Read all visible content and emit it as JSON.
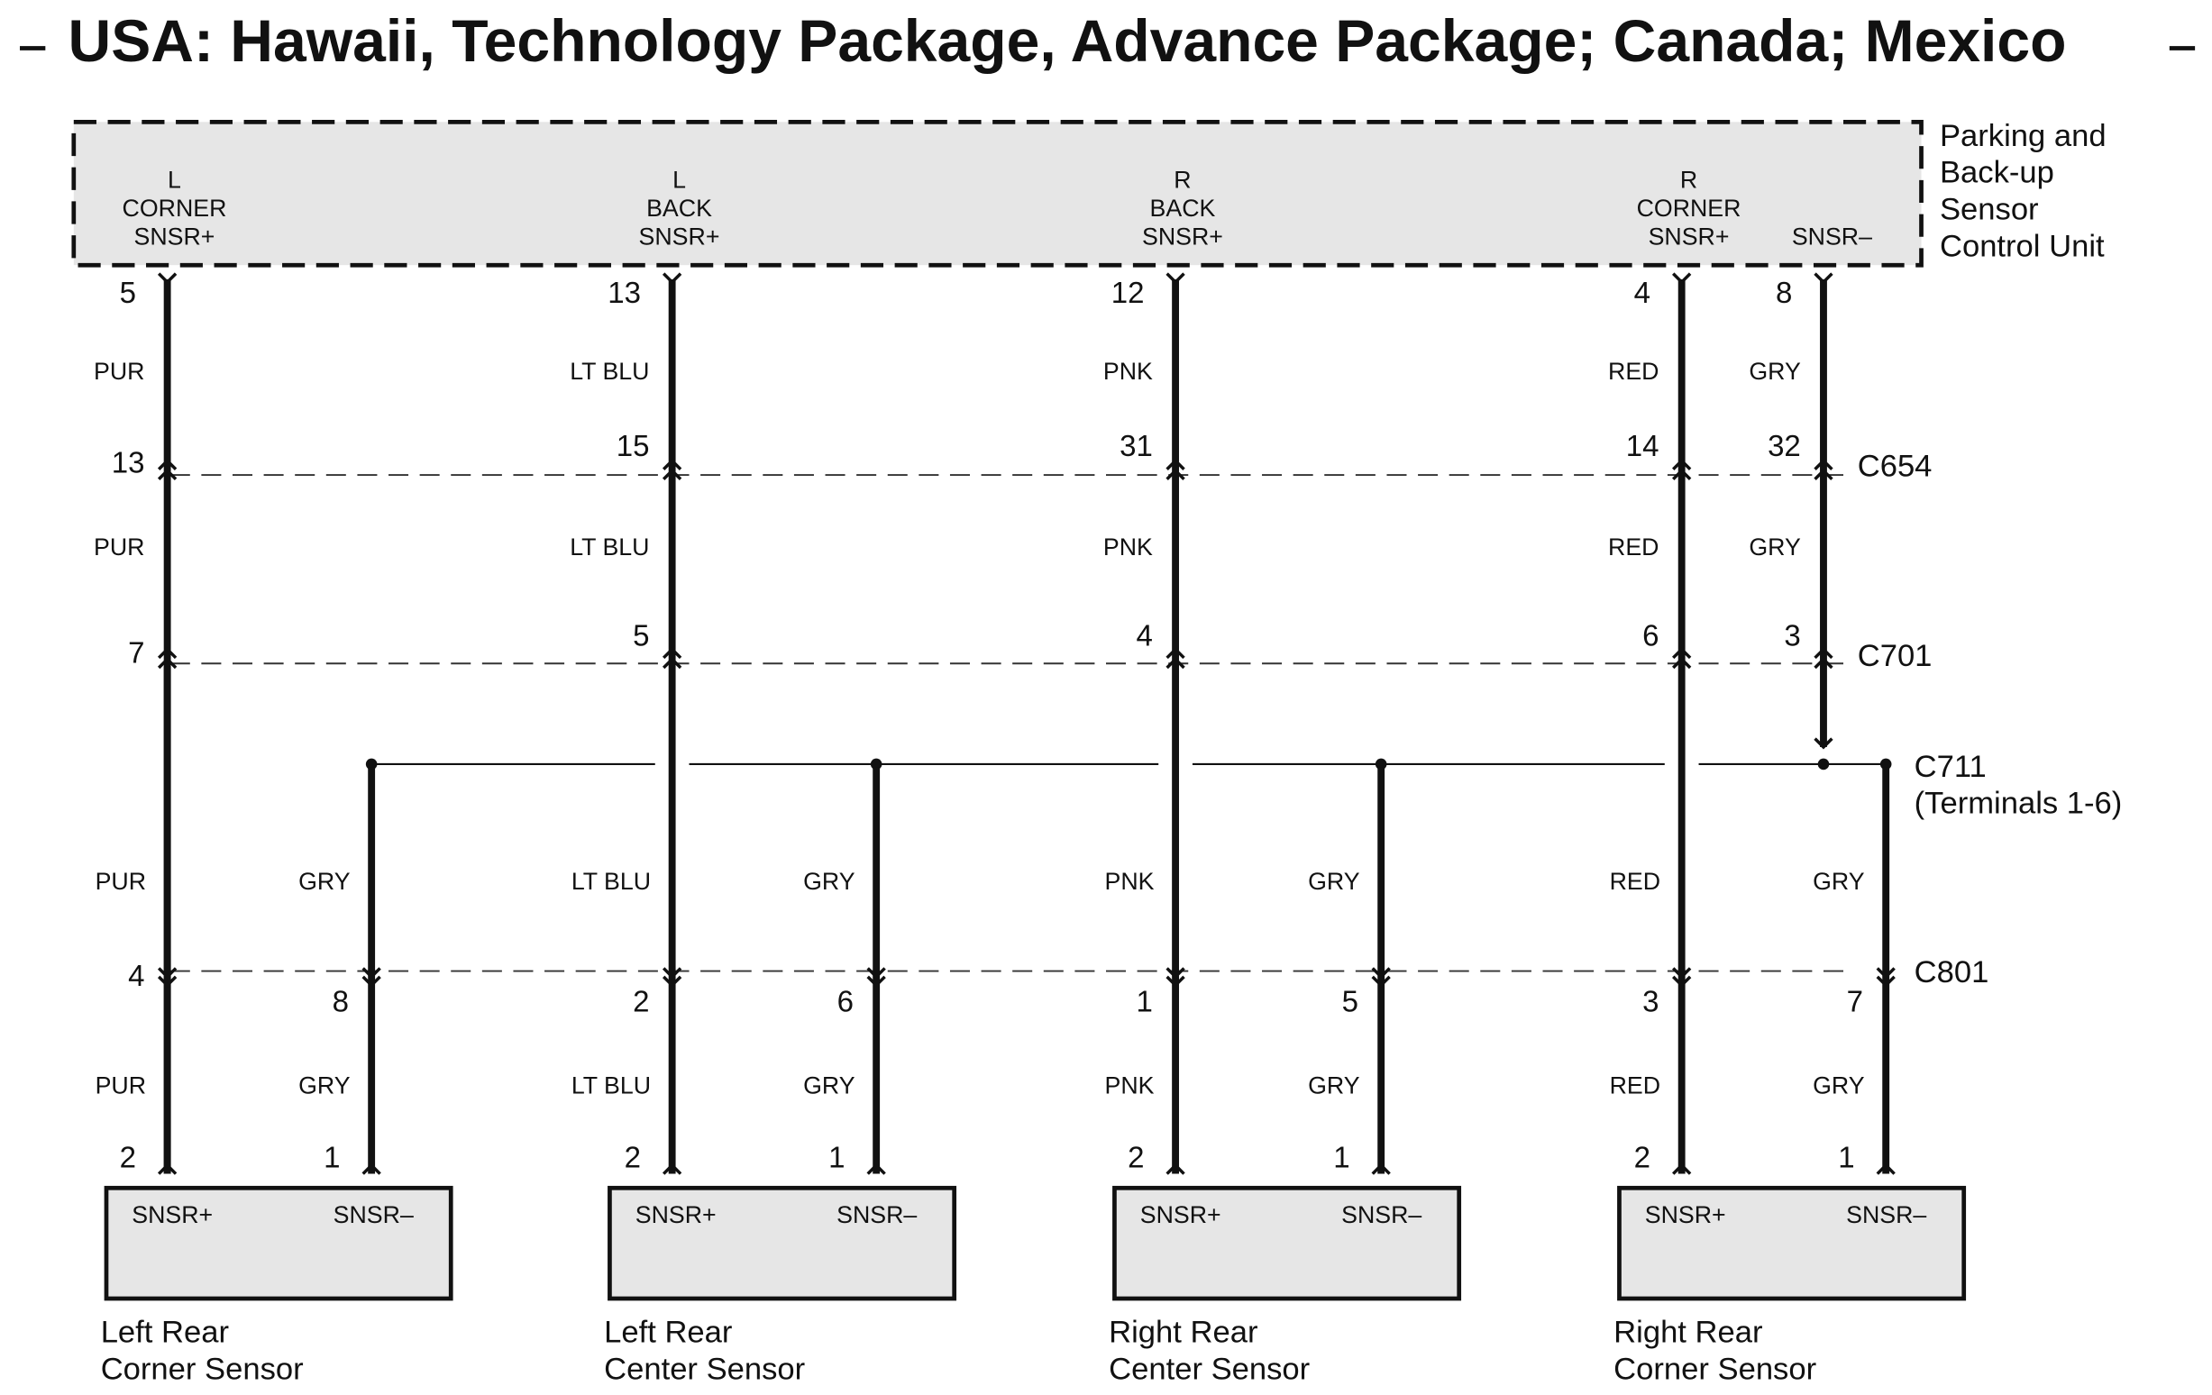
{
  "title": "USA: Hawaii, Technology Package, Advance Package; Canada; Mexico",
  "control_unit": {
    "name": [
      "Parking and",
      "Back-up",
      "Sensor",
      "Control Unit"
    ],
    "terminals": [
      {
        "label": [
          "L",
          "CORNER",
          "SNSR+"
        ],
        "pin": "5"
      },
      {
        "label": [
          "L",
          "BACK",
          "SNSR+"
        ],
        "pin": "13"
      },
      {
        "label": [
          "R",
          "BACK",
          "SNSR+"
        ],
        "pin": "12"
      },
      {
        "label": [
          "R",
          "CORNER",
          "SNSR+"
        ],
        "pin": "4"
      },
      {
        "label": [
          "SNSR–"
        ],
        "pin": "8"
      }
    ]
  },
  "wire_colors": {
    "unit_to_c654": [
      "PUR",
      "LT BLU",
      "PNK",
      "RED",
      "GRY"
    ],
    "c654_to_c701": [
      "PUR",
      "LT BLU",
      "PNK",
      "RED",
      "GRY"
    ],
    "to_c801": [
      "PUR",
      "GRY",
      "LT BLU",
      "GRY",
      "PNK",
      "GRY",
      "RED",
      "GRY"
    ],
    "c801_to_sensors": [
      "PUR",
      "GRY",
      "LT BLU",
      "GRY",
      "PNK",
      "GRY",
      "RED",
      "GRY"
    ]
  },
  "connectors": {
    "c654": {
      "name": "C654",
      "pins": [
        "13",
        "15",
        "31",
        "14",
        "32"
      ]
    },
    "c701": {
      "name": "C701",
      "pins": [
        "7",
        "5",
        "4",
        "6",
        "3"
      ]
    },
    "c711": {
      "name": "C711",
      "note": "(Terminals 1-6)"
    },
    "c801": {
      "name": "C801",
      "pins": [
        "4",
        "8",
        "2",
        "6",
        "1",
        "5",
        "3",
        "7"
      ]
    }
  },
  "sensors": [
    {
      "name": [
        "Left Rear",
        "Corner Sensor"
      ],
      "terminals": [
        "SNSR+",
        "SNSR–"
      ],
      "pins": [
        "2",
        "1"
      ]
    },
    {
      "name": [
        "Left Rear",
        "Center Sensor"
      ],
      "terminals": [
        "SNSR+",
        "SNSR–"
      ],
      "pins": [
        "2",
        "1"
      ]
    },
    {
      "name": [
        "Right Rear",
        "Center Sensor"
      ],
      "terminals": [
        "SNSR+",
        "SNSR–"
      ],
      "pins": [
        "2",
        "1"
      ]
    },
    {
      "name": [
        "Right Rear",
        "Corner Sensor"
      ],
      "terminals": [
        "SNSR+",
        "SNSR–"
      ],
      "pins": [
        "2",
        "1"
      ]
    }
  ]
}
